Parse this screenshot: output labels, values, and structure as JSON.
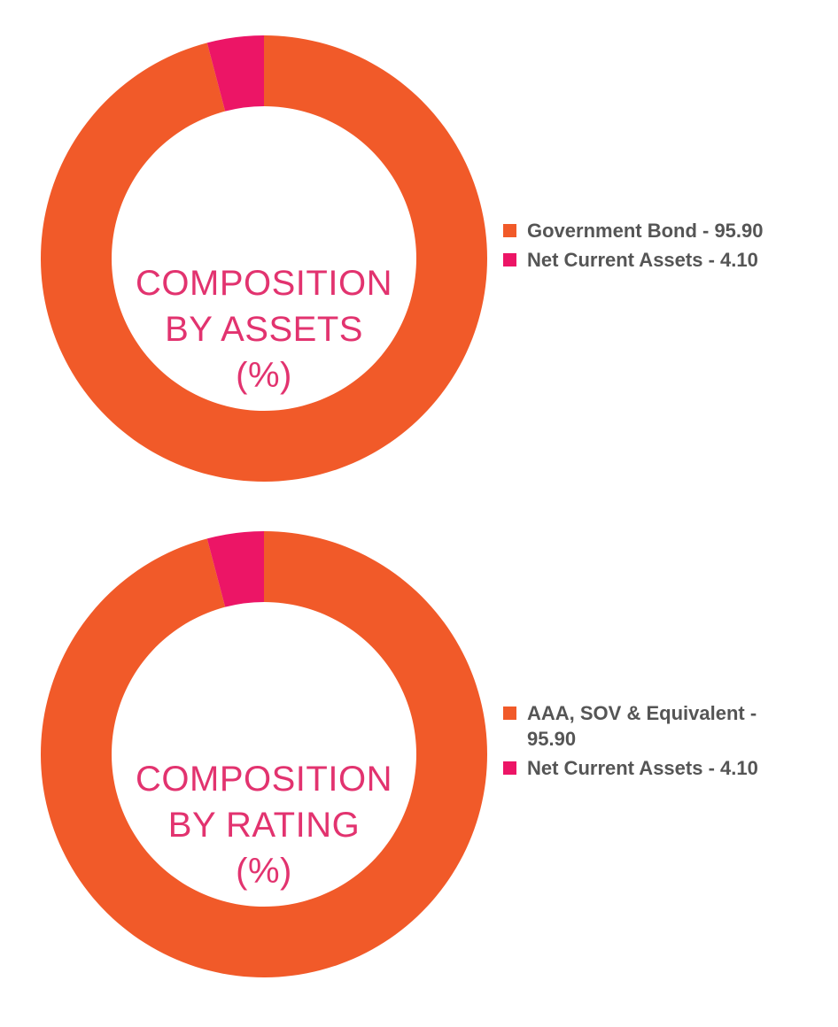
{
  "colors": {
    "orange": "#F15A29",
    "pink": "#EC1566",
    "title": "#E2336F",
    "legend_text": "#555555"
  },
  "chart_data": [
    {
      "type": "pie",
      "style": "donut",
      "title_lines": [
        "COMPOSITION",
        "BY ASSETS",
        "(%)"
      ],
      "slices": [
        {
          "label": "Government Bond - 95.90",
          "name": "Government Bond",
          "value": 95.9,
          "color": "#F15A29"
        },
        {
          "label": "Net Current Assets - 4.10",
          "name": "Net Current Assets",
          "value": 4.1,
          "color": "#EC1566"
        }
      ],
      "legend_position": "right"
    },
    {
      "type": "pie",
      "style": "donut",
      "title_lines": [
        "COMPOSITION",
        "BY RATING",
        "(%)"
      ],
      "slices": [
        {
          "label": "AAA, SOV & Equivalent - 95.90",
          "name": "AAA, SOV & Equivalent",
          "value": 95.9,
          "color": "#F15A29"
        },
        {
          "label": "Net Current Assets - 4.10",
          "name": "Net Current Assets",
          "value": 4.1,
          "color": "#EC1566"
        }
      ],
      "legend_position": "right"
    }
  ]
}
